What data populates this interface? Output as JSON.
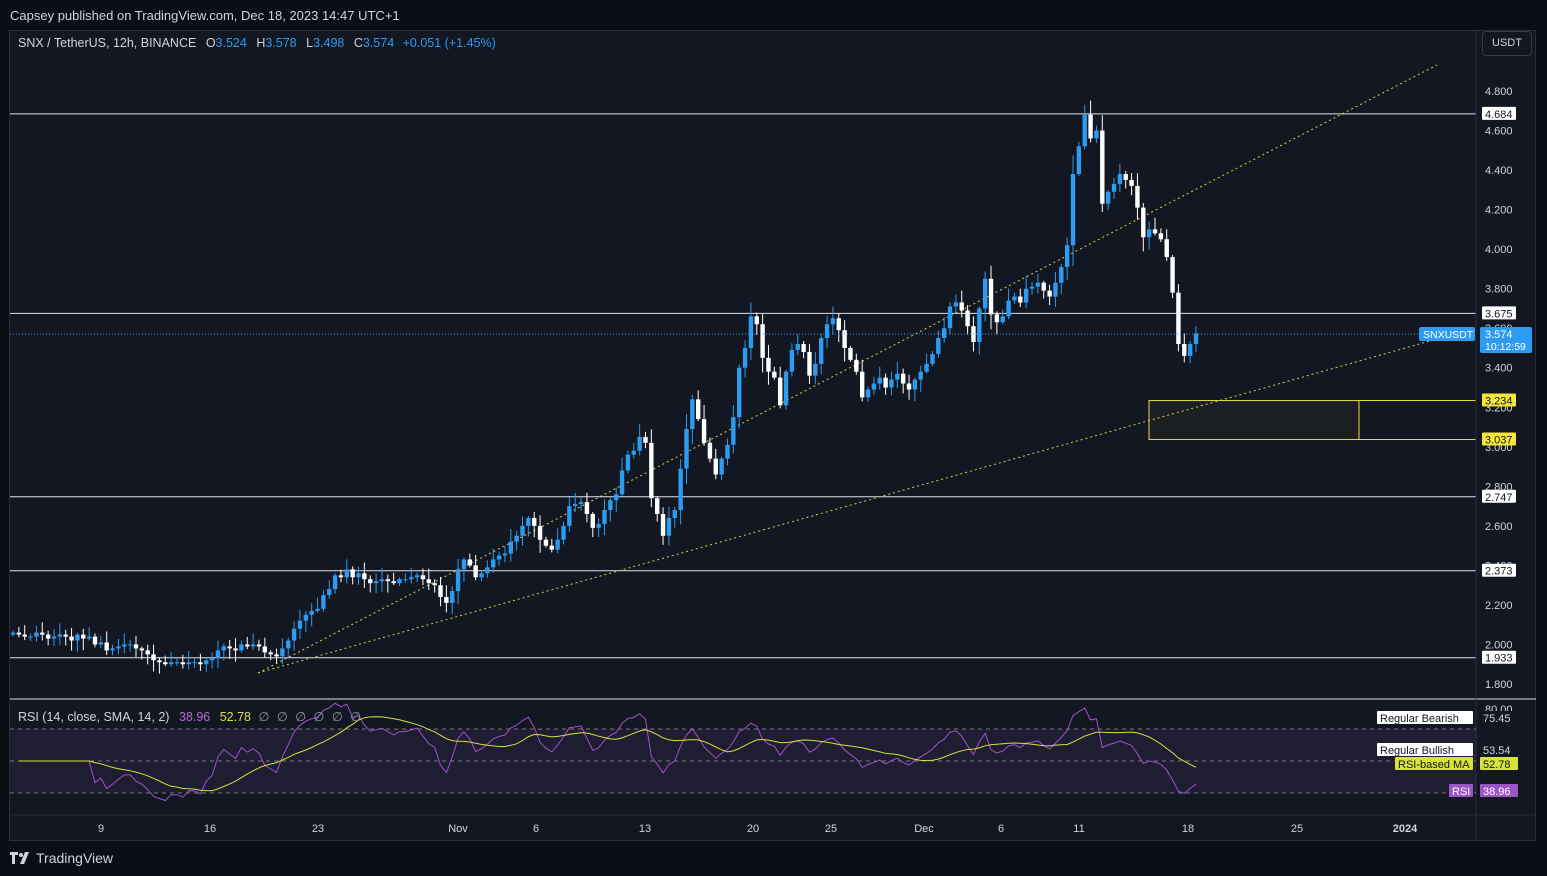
{
  "published": "Capsey published on TradingView.com, Dec 18, 2023 14:47 UTC+1",
  "legend": {
    "symbol": "SNX / TetherUS, 12h, BINANCE",
    "open_label": "O",
    "open": "3.524",
    "high_label": "H",
    "high": "3.578",
    "low_label": "L",
    "low": "3.498",
    "close_label": "C",
    "close": "3.574",
    "change": "+0.051 (+1.45%)"
  },
  "currency": "USDT",
  "rsi_legend": {
    "title": "RSI (14, close, SMA, 14, 2)",
    "rsi": "38.96",
    "ma": "52.78",
    "placeholders": "∅ ∅ ∅ ∅ ∅ ∅"
  },
  "footer": {
    "brand": "TradingView"
  },
  "colors": {
    "up": "#2c9bf0",
    "down": "#ffffff",
    "bg": "#131722",
    "trendline": "#d8cf4a",
    "rsi": "#9c55c6",
    "rsi_ma": "#d7e23a"
  },
  "chart_data": {
    "type": "candlestick",
    "symbol": "SNXUSDT",
    "interval": "12h",
    "price_axis": {
      "ylim": [
        1.72,
        4.98
      ],
      "ticks": [
        "1.800",
        "2.000",
        "2.200",
        "2.400",
        "2.600",
        "2.800",
        "3.000",
        "3.200",
        "3.400",
        "3.600",
        "3.800",
        "4.000",
        "4.200",
        "4.400",
        "4.600",
        "4.800"
      ]
    },
    "time_axis": {
      "ticks": [
        "9",
        "16",
        "23",
        "Nov",
        "6",
        "13",
        "20",
        "25",
        "Dec",
        "6",
        "11",
        "18",
        "25",
        "2024"
      ]
    },
    "horizontal_levels": [
      4.684,
      3.675,
      2.747,
      2.373,
      1.933
    ],
    "level_labels": [
      "4.684",
      "3.675",
      "2.747",
      "2.373",
      "1.933"
    ],
    "zone": {
      "top": 3.234,
      "bottom": 3.037,
      "labels": [
        "3.234",
        "3.037"
      ]
    },
    "last_price": {
      "symbol": "SNXUSDT",
      "value": "3.574",
      "countdown": "10:12:59"
    },
    "close_estimates": [
      2.06,
      2.05,
      2.04,
      2.04,
      2.06,
      2.05,
      2.03,
      2.04,
      2.05,
      2.04,
      2.02,
      2.05,
      2.03,
      2.04,
      2.0,
      2.01,
      1.97,
      1.98,
      1.99,
      2.0,
      2.0,
      1.98,
      1.97,
      1.95,
      1.92,
      1.91,
      1.9,
      1.91,
      1.91,
      1.9,
      1.91,
      1.91,
      1.9,
      1.92,
      1.93,
      1.97,
      1.99,
      1.98,
      1.97,
      2.0,
      1.99,
      2.0,
      1.99,
      1.96,
      1.95,
      1.94,
      1.98,
      2.02,
      2.08,
      2.12,
      2.15,
      2.17,
      2.18,
      2.25,
      2.28,
      2.35,
      2.34,
      2.38,
      2.34,
      2.36,
      2.33,
      2.31,
      2.32,
      2.33,
      2.32,
      2.31,
      2.33,
      2.33,
      2.34,
      2.35,
      2.33,
      2.31,
      2.3,
      2.24,
      2.21,
      2.27,
      2.38,
      2.43,
      2.4,
      2.34,
      2.36,
      2.39,
      2.43,
      2.45,
      2.46,
      2.52,
      2.55,
      2.6,
      2.64,
      2.6,
      2.53,
      2.5,
      2.48,
      2.53,
      2.6,
      2.7,
      2.71,
      2.72,
      2.66,
      2.59,
      2.61,
      2.68,
      2.73,
      2.76,
      2.88,
      2.96,
      2.98,
      3.05,
      3.02,
      2.74,
      2.66,
      2.55,
      2.64,
      2.68,
      2.89,
      3.09,
      3.24,
      3.14,
      3.02,
      2.94,
      2.86,
      2.94,
      3.01,
      3.15,
      3.4,
      3.5,
      3.66,
      3.62,
      3.45,
      3.38,
      3.35,
      3.21,
      3.38,
      3.49,
      3.52,
      3.48,
      3.36,
      3.42,
      3.55,
      3.62,
      3.65,
      3.59,
      3.5,
      3.44,
      3.38,
      3.25,
      3.29,
      3.32,
      3.35,
      3.3,
      3.34,
      3.37,
      3.32,
      3.29,
      3.34,
      3.38,
      3.42,
      3.47,
      3.55,
      3.6,
      3.71,
      3.73,
      3.69,
      3.61,
      3.53,
      3.7,
      3.85,
      3.67,
      3.63,
      3.66,
      3.74,
      3.76,
      3.73,
      3.8,
      3.81,
      3.83,
      3.79,
      3.76,
      3.83,
      3.91,
      4.02,
      4.38,
      4.52,
      4.68,
      4.56,
      4.6,
      4.23,
      4.29,
      4.33,
      4.38,
      4.35,
      4.32,
      4.21,
      4.06,
      4.1,
      4.08,
      4.05,
      3.96,
      3.78,
      3.52,
      3.46,
      3.52,
      3.574
    ]
  },
  "rsi_panel": {
    "ticks": [
      "80.00"
    ],
    "labels": [
      {
        "text": "Regular Bearish",
        "value": "75.45"
      },
      {
        "text": "Regular Bullish",
        "value": "53.54"
      },
      {
        "text": "RSI-based MA",
        "value": "52.78"
      },
      {
        "text": "RSI",
        "value": "38.96"
      }
    ]
  }
}
